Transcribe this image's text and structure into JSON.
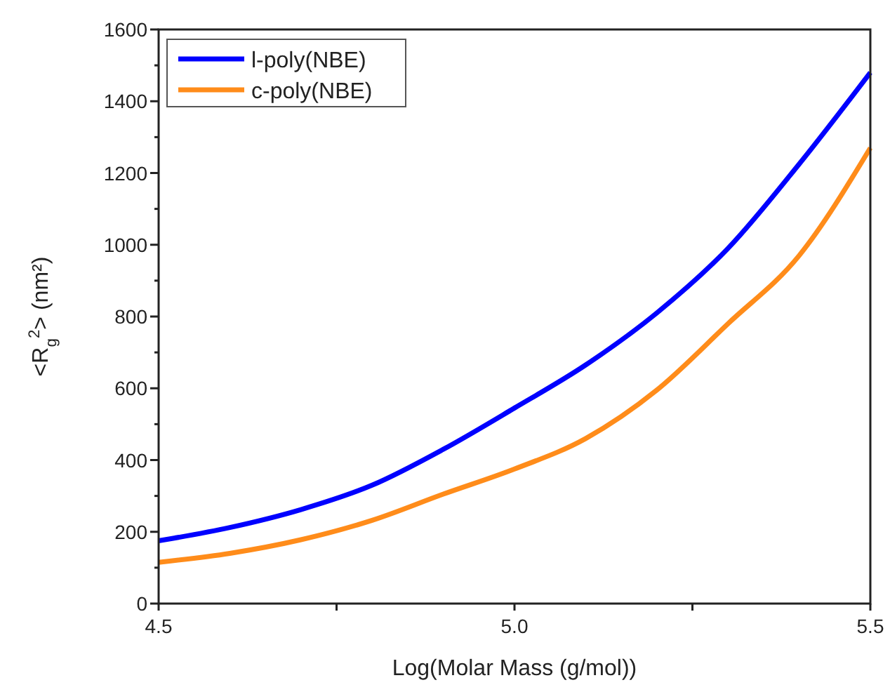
{
  "chart_data": {
    "type": "line",
    "xlabel": "Log(Molar Mass (g/mol))",
    "ylabel": "<R$_{g}$$^{2}$> (nm²)",
    "x": [
      4.5,
      4.6,
      4.7,
      4.8,
      4.9,
      5.0,
      5.1,
      5.2,
      5.3,
      5.4,
      5.5
    ],
    "series": [
      {
        "name": "l-poly(NBE)",
        "color": "#0000ff",
        "values": [
          175,
          212,
          262,
          330,
          430,
          545,
          665,
          810,
          990,
          1225,
          1480
        ]
      },
      {
        "name": "c-poly(NBE)",
        "color": "#ff8c1a",
        "values": [
          115,
          140,
          178,
          232,
          305,
          375,
          460,
          595,
          780,
          970,
          1270
        ]
      }
    ],
    "xlim": [
      4.5,
      5.5
    ],
    "xticks": [
      4.5,
      {
        "value": 4.75,
        "label": null
      },
      {
        "value": 5.0,
        "label": "5.0"
      },
      {
        "value": 5.25,
        "label": null
      },
      5.5
    ],
    "ylim": [
      0,
      1600
    ],
    "yticks": [
      0,
      {
        "value": 100,
        "label": null
      },
      200,
      {
        "value": 300,
        "label": null
      },
      400,
      {
        "value": 500,
        "label": null
      },
      600,
      {
        "value": 700,
        "label": null
      },
      800,
      {
        "value": 900,
        "label": null
      },
      1000,
      {
        "value": 1100,
        "label": null
      },
      1200,
      {
        "value": 1300,
        "label": null
      },
      1400,
      {
        "value": 1500,
        "label": null
      },
      1600
    ],
    "legend": "top left",
    "grid": false,
    "line_style": "solid"
  }
}
